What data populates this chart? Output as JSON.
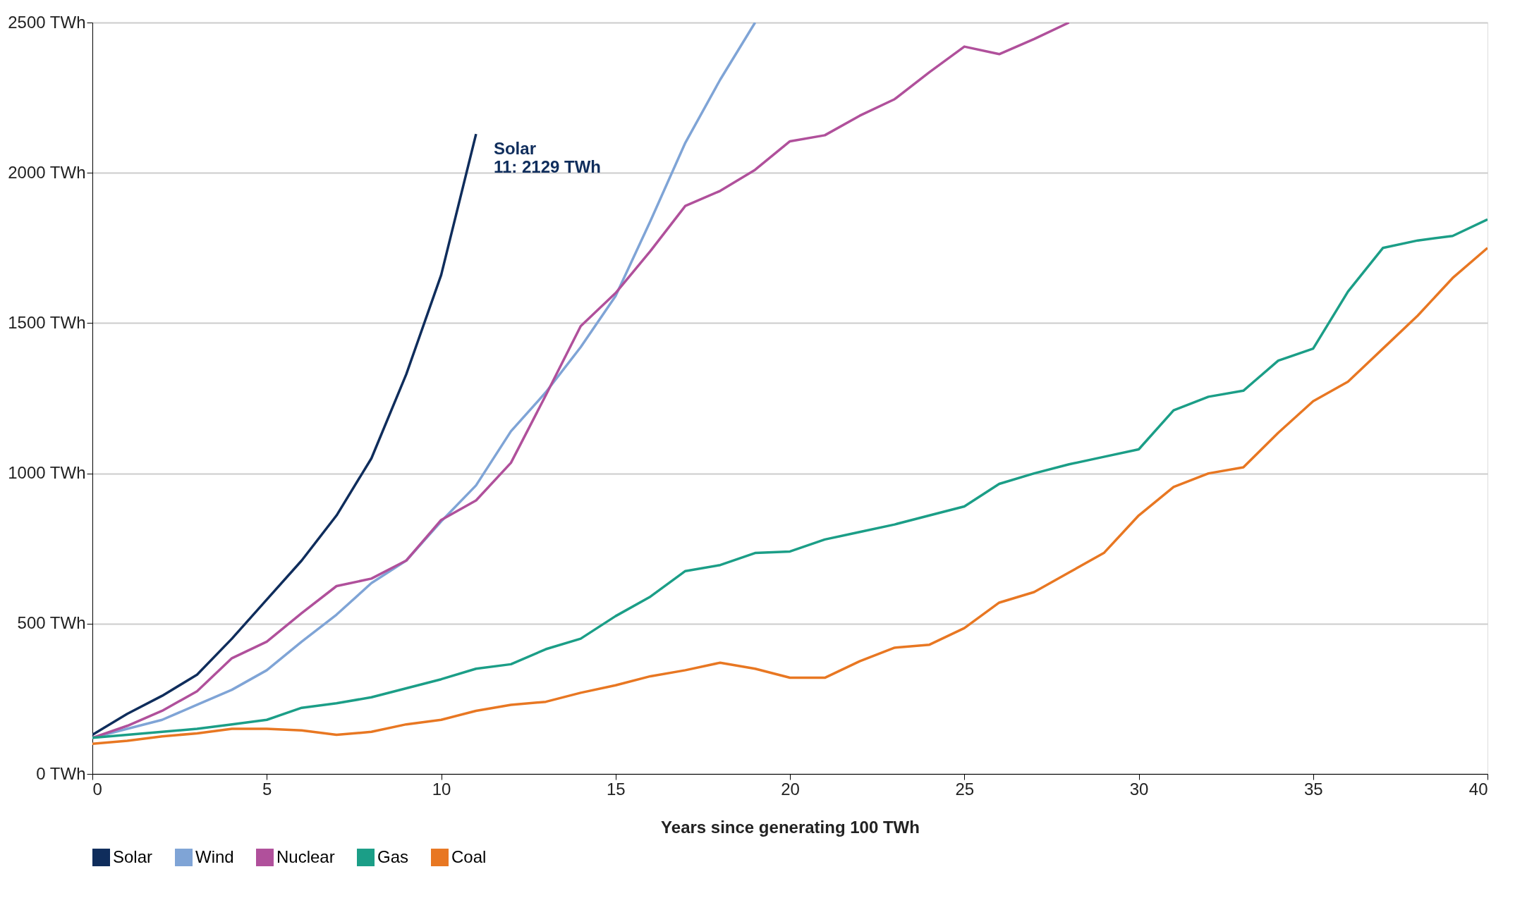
{
  "chart_data": {
    "type": "line",
    "xlabel": "Years since generating 100 TWh",
    "xlim": [
      0,
      40
    ],
    "xticks": [
      0,
      5,
      10,
      15,
      20,
      25,
      30,
      35,
      40
    ],
    "ylim": [
      0,
      2500
    ],
    "yticks": [
      {
        "value": 0,
        "label": "0 TWh"
      },
      {
        "value": 500,
        "label": "500 TWh"
      },
      {
        "value": 1000,
        "label": "1000 TWh"
      },
      {
        "value": 1500,
        "label": "1500 TWh"
      },
      {
        "value": 2000,
        "label": "2000 TWh"
      },
      {
        "value": 2500,
        "label": "2500 TWh"
      }
    ],
    "grid": "y",
    "legend": "bottom left",
    "marker": "none",
    "line_style": "solid",
    "annotations": [
      {
        "text": "Solar\n11: 2129 TWh",
        "x": 11,
        "y": 2129
      }
    ],
    "series": [
      {
        "name": "Solar",
        "color": "#0f2d5c",
        "x": [
          0,
          1,
          2,
          3,
          4,
          5,
          6,
          7,
          8,
          9,
          10,
          11
        ],
        "values": [
          130,
          200,
          260,
          330,
          450,
          580,
          710,
          860,
          1050,
          1330,
          1660,
          2129
        ]
      },
      {
        "name": "Wind",
        "color": "#7fa4d6",
        "x": [
          0,
          1,
          2,
          3,
          4,
          5,
          6,
          7,
          8,
          9,
          10,
          11,
          12,
          13,
          14,
          15,
          16,
          17,
          18,
          19
        ],
        "values": [
          120,
          150,
          180,
          230,
          280,
          345,
          440,
          530,
          635,
          710,
          840,
          960,
          1140,
          1270,
          1420,
          1590,
          1840,
          2100,
          2310,
          2500
        ]
      },
      {
        "name": "Nuclear",
        "color": "#b0509b",
        "x": [
          0,
          1,
          2,
          3,
          4,
          5,
          6,
          7,
          8,
          9,
          10,
          11,
          12,
          13,
          14,
          15,
          16,
          17,
          18,
          19,
          20,
          21,
          22,
          23,
          24,
          25,
          26,
          27,
          28
        ],
        "values": [
          120,
          160,
          210,
          275,
          385,
          440,
          535,
          625,
          650,
          710,
          845,
          910,
          1035,
          1260,
          1490,
          1600,
          1740,
          1890,
          1940,
          2010,
          2105,
          2125,
          2190,
          2245,
          2335,
          2420,
          2395,
          2445,
          2500
        ]
      },
      {
        "name": "Gas",
        "color": "#1b9e87",
        "x": [
          0,
          1,
          2,
          3,
          4,
          5,
          6,
          7,
          8,
          9,
          10,
          11,
          12,
          13,
          14,
          15,
          16,
          17,
          18,
          19,
          20,
          21,
          22,
          23,
          24,
          25,
          26,
          27,
          28,
          29,
          30,
          31,
          32,
          33,
          34,
          35,
          36,
          37,
          38,
          39,
          40
        ],
        "values": [
          120,
          130,
          140,
          150,
          165,
          180,
          220,
          235,
          255,
          285,
          315,
          350,
          365,
          415,
          450,
          525,
          590,
          675,
          695,
          735,
          740,
          780,
          805,
          830,
          860,
          890,
          965,
          1000,
          1030,
          1055,
          1080,
          1210,
          1255,
          1275,
          1375,
          1415,
          1605,
          1750,
          1775,
          1790,
          1845
        ]
      },
      {
        "name": "Coal",
        "color": "#e87722",
        "x": [
          0,
          1,
          2,
          3,
          4,
          5,
          6,
          7,
          8,
          9,
          10,
          11,
          12,
          13,
          14,
          15,
          16,
          17,
          18,
          19,
          20,
          21,
          22,
          23,
          24,
          25,
          26,
          27,
          28,
          29,
          30,
          31,
          32,
          33,
          34,
          35,
          36,
          37,
          38,
          39,
          40
        ],
        "values": [
          100,
          110,
          125,
          135,
          150,
          150,
          145,
          130,
          140,
          165,
          180,
          210,
          230,
          240,
          270,
          295,
          325,
          345,
          370,
          350,
          320,
          320,
          375,
          420,
          430,
          485,
          570,
          605,
          670,
          735,
          860,
          955,
          1000,
          1020,
          1135,
          1240,
          1305,
          1415,
          1525,
          1650,
          1750
        ]
      }
    ]
  }
}
